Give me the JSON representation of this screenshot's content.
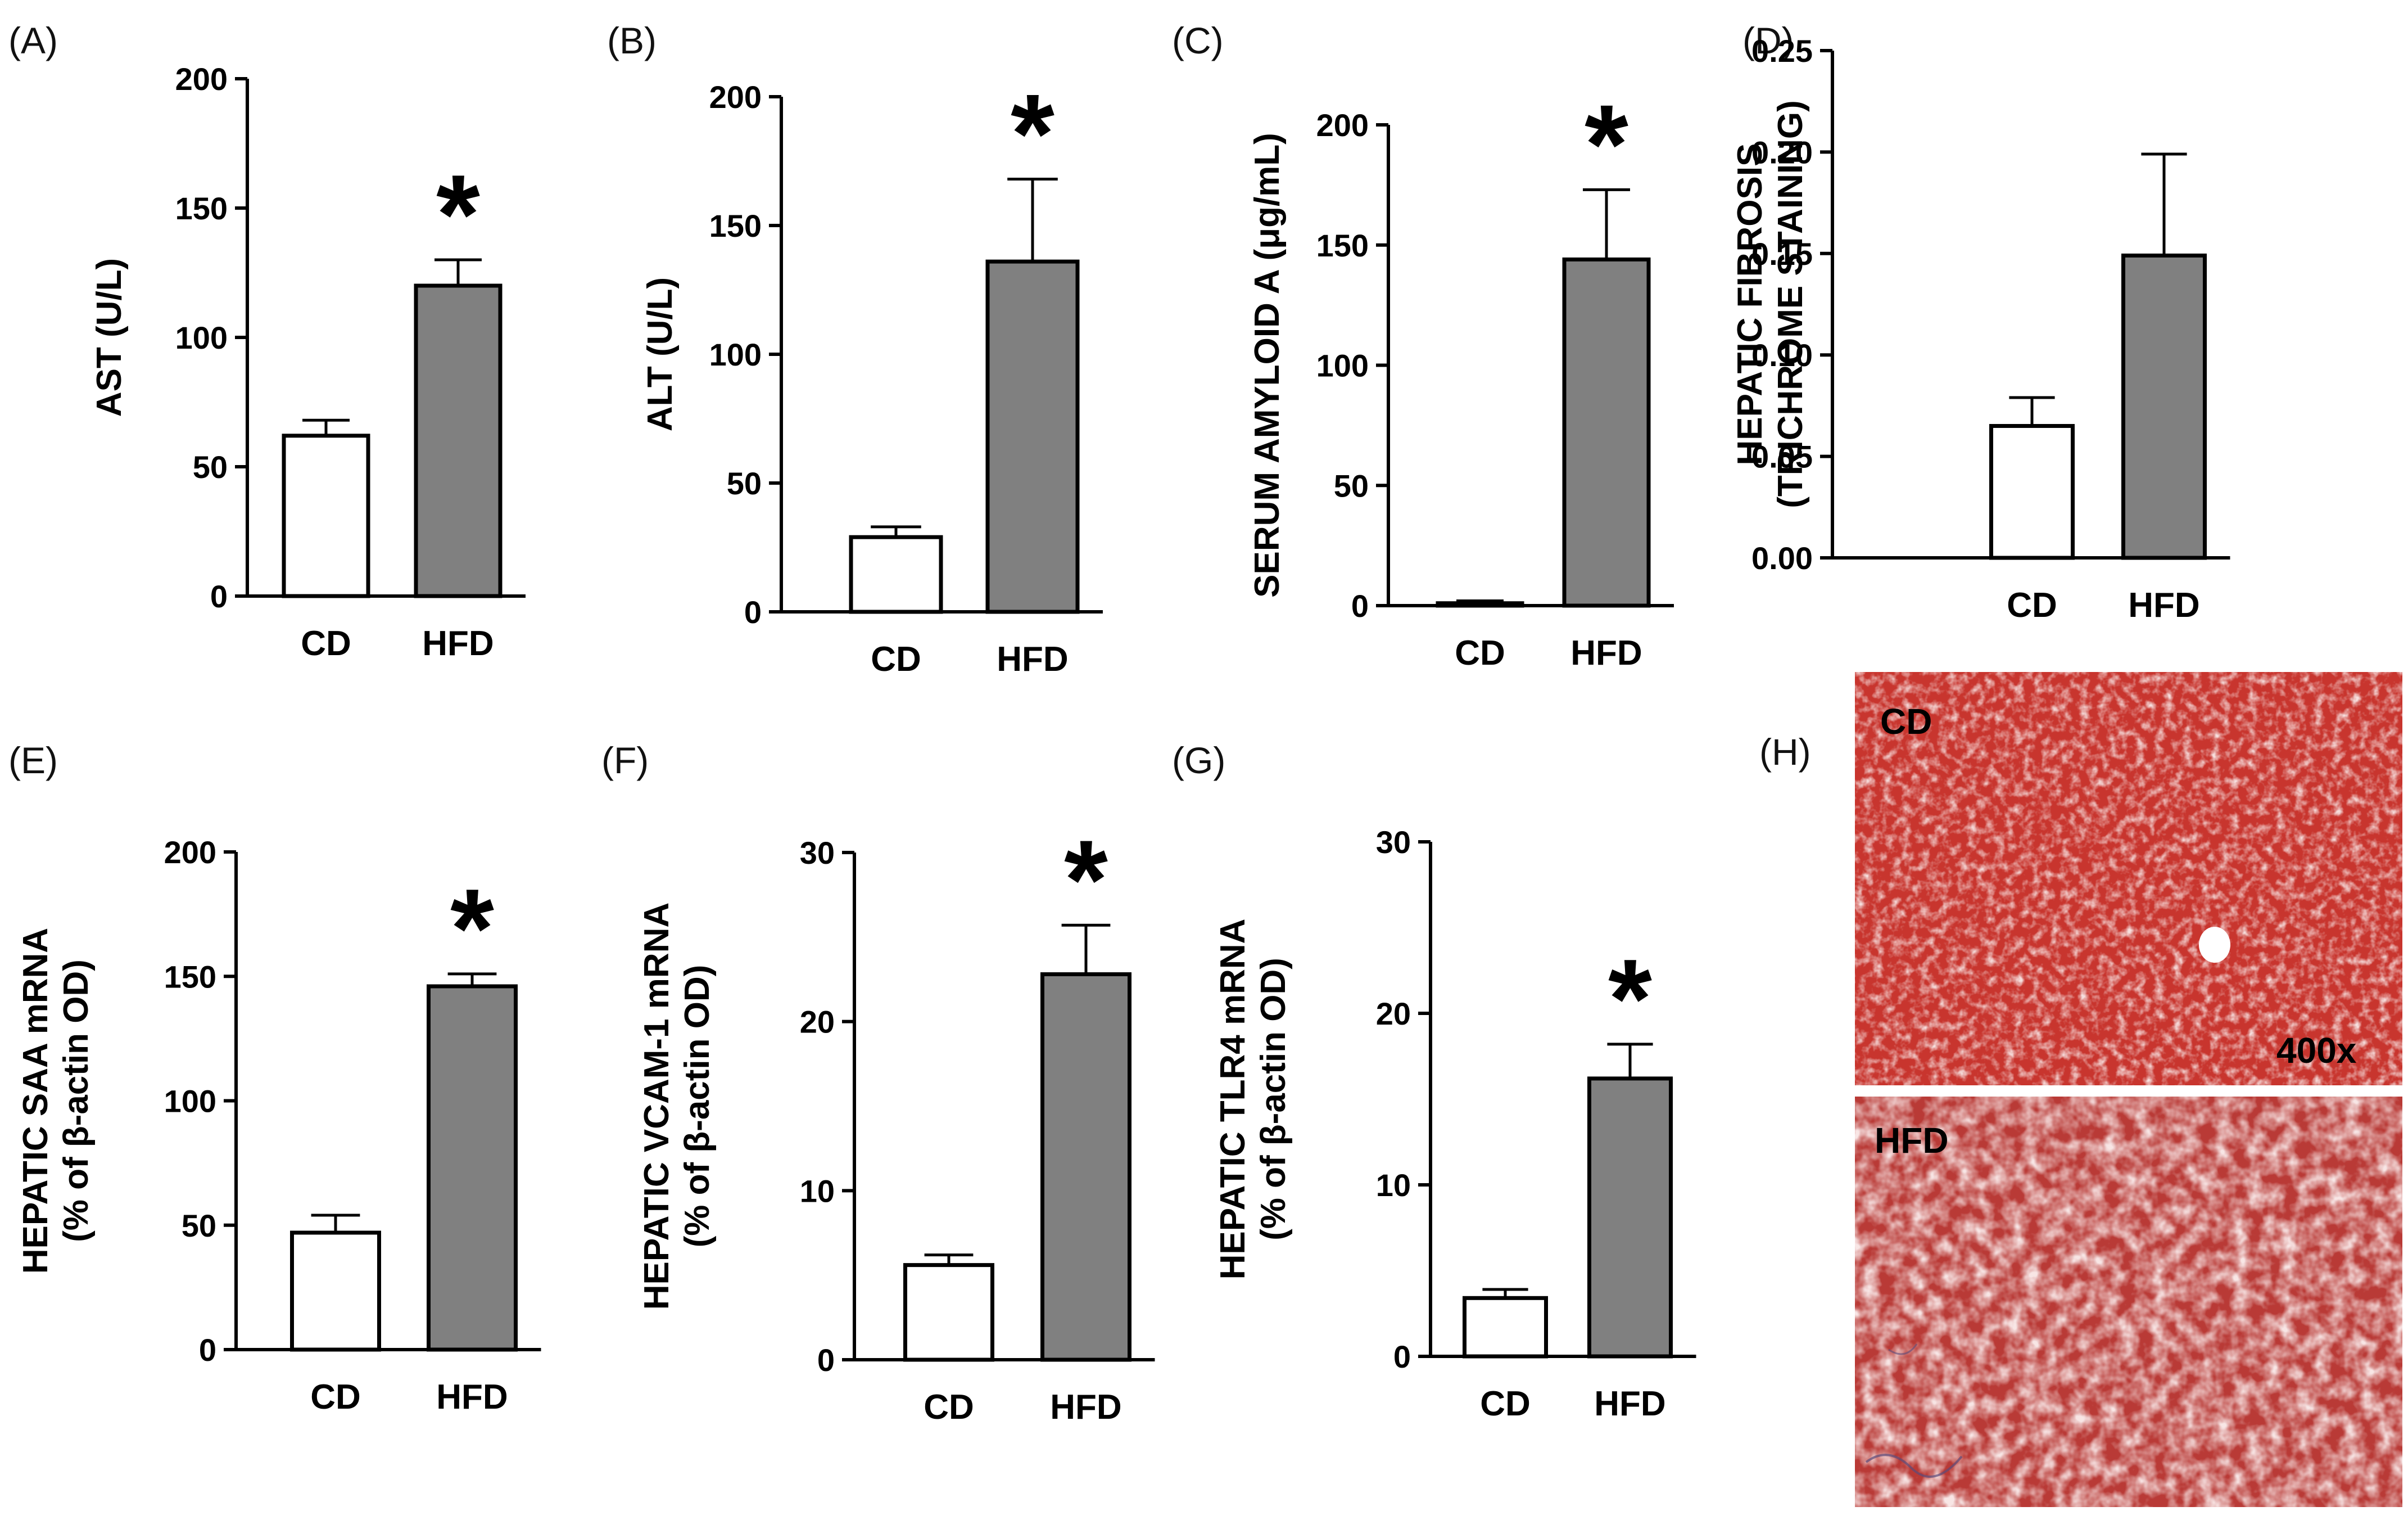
{
  "figure": {
    "colors": {
      "cd_bar": "#ffffff",
      "hfd_bar": "#808080",
      "axis": "#000000",
      "tissue": "#c8352e"
    },
    "micrograph": {
      "label": "(H)",
      "top_label": "CD",
      "magnification": "400x",
      "bottom_label": "HFD"
    }
  },
  "chart_data": [
    {
      "type": "bar",
      "label": "(A)",
      "ylabel": [
        "AST (U/L)"
      ],
      "categories": [
        "CD",
        "HFD"
      ],
      "values": [
        62,
        120
      ],
      "errors": [
        6,
        10
      ],
      "ylim": [
        0,
        200
      ],
      "yticks": [
        "0",
        "50",
        "100",
        "150",
        "200"
      ],
      "significance": [
        "",
        "*"
      ]
    },
    {
      "type": "bar",
      "label": "(B)",
      "ylabel": [
        "ALT (U/L)"
      ],
      "categories": [
        "CD",
        "HFD"
      ],
      "values": [
        29,
        136
      ],
      "errors": [
        4,
        32
      ],
      "ylim": [
        0,
        200
      ],
      "yticks": [
        "0",
        "50",
        "100",
        "150",
        "200"
      ],
      "significance": [
        "",
        "*"
      ]
    },
    {
      "type": "bar",
      "label": "(C)",
      "ylabel": [
        "SERUM AMYLOID A (μg/mL)"
      ],
      "categories": [
        "CD",
        "HFD"
      ],
      "values": [
        1,
        144
      ],
      "errors": [
        1,
        29
      ],
      "ylim": [
        0,
        200
      ],
      "yticks": [
        "0",
        "50",
        "100",
        "150",
        "200"
      ],
      "significance": [
        "",
        "*"
      ]
    },
    {
      "type": "bar",
      "label": "(D)",
      "ylabel": [
        "HEPATIC FIBROSIS",
        "(TRICHROME STAINING)"
      ],
      "categories": [
        "CD",
        "HFD"
      ],
      "values": [
        0.065,
        0.149
      ],
      "errors": [
        0.014,
        0.05
      ],
      "ylim": [
        0,
        0.25
      ],
      "yticks": [
        "0.00",
        "0.05",
        "0.10",
        "0.15",
        "0.20",
        "0.25"
      ],
      "significance": [
        "",
        ""
      ]
    },
    {
      "type": "bar",
      "label": "(E)",
      "ylabel": [
        "HEPATIC SAA mRNA",
        "(% of β-actin OD)"
      ],
      "categories": [
        "CD",
        "HFD"
      ],
      "values": [
        47,
        146
      ],
      "errors": [
        7,
        5
      ],
      "ylim": [
        0,
        200
      ],
      "yticks": [
        "0",
        "50",
        "100",
        "150",
        "200"
      ],
      "significance": [
        "",
        "*"
      ]
    },
    {
      "type": "bar",
      "label": "(F)",
      "ylabel": [
        "HEPATIC VCAM-1 mRNA",
        "(% of β-actin OD)"
      ],
      "categories": [
        "CD",
        "HFD"
      ],
      "values": [
        5.6,
        22.8
      ],
      "errors": [
        0.6,
        2.9
      ],
      "ylim": [
        0,
        30
      ],
      "yticks": [
        "0",
        "10",
        "20",
        "30"
      ],
      "significance": [
        "",
        "*"
      ]
    },
    {
      "type": "bar",
      "label": "(G)",
      "ylabel": [
        "HEPATIC TLR4 mRNA",
        "(% of β-actin OD)"
      ],
      "categories": [
        "CD",
        "HFD"
      ],
      "values": [
        3.4,
        16.2
      ],
      "errors": [
        0.5,
        2.0
      ],
      "ylim": [
        0,
        30
      ],
      "yticks": [
        "0",
        "10",
        "20",
        "30"
      ],
      "significance": [
        "",
        "*"
      ]
    }
  ]
}
